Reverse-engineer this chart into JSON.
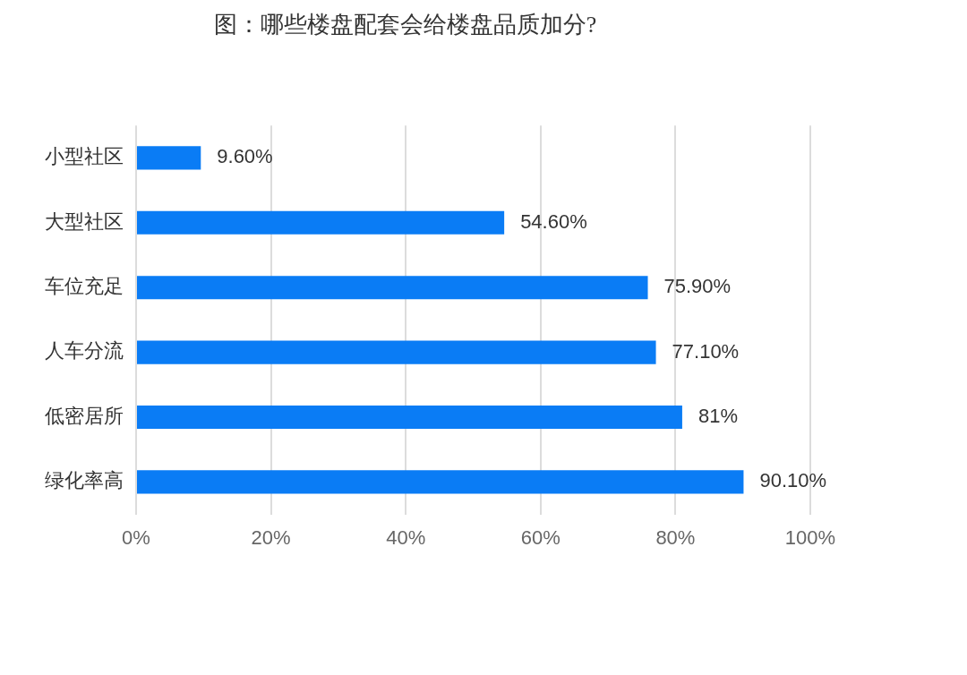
{
  "chart_data": {
    "type": "bar",
    "orientation": "horizontal",
    "title": "图：哪些楼盘配套会给楼盘品质加分?",
    "categories": [
      "小型社区",
      "大型社区",
      "车位充足",
      "人车分流",
      "低密居所",
      "绿化率高"
    ],
    "values": [
      9.6,
      54.6,
      75.9,
      77.1,
      81,
      90.1
    ],
    "value_labels": [
      "9.60%",
      "54.60%",
      "75.90%",
      "77.10%",
      "81%",
      "90.10%"
    ],
    "color": "#0a7cf5",
    "xlim": [
      0,
      100
    ],
    "xticks": [
      {
        "value": 0,
        "label": "0%"
      },
      {
        "value": 20,
        "label": "20%"
      },
      {
        "value": 40,
        "label": "40%"
      },
      {
        "value": 60,
        "label": "60%"
      },
      {
        "value": 80,
        "label": "80%"
      },
      {
        "value": 100,
        "label": "100%"
      }
    ],
    "grid": "x",
    "legend": false
  }
}
